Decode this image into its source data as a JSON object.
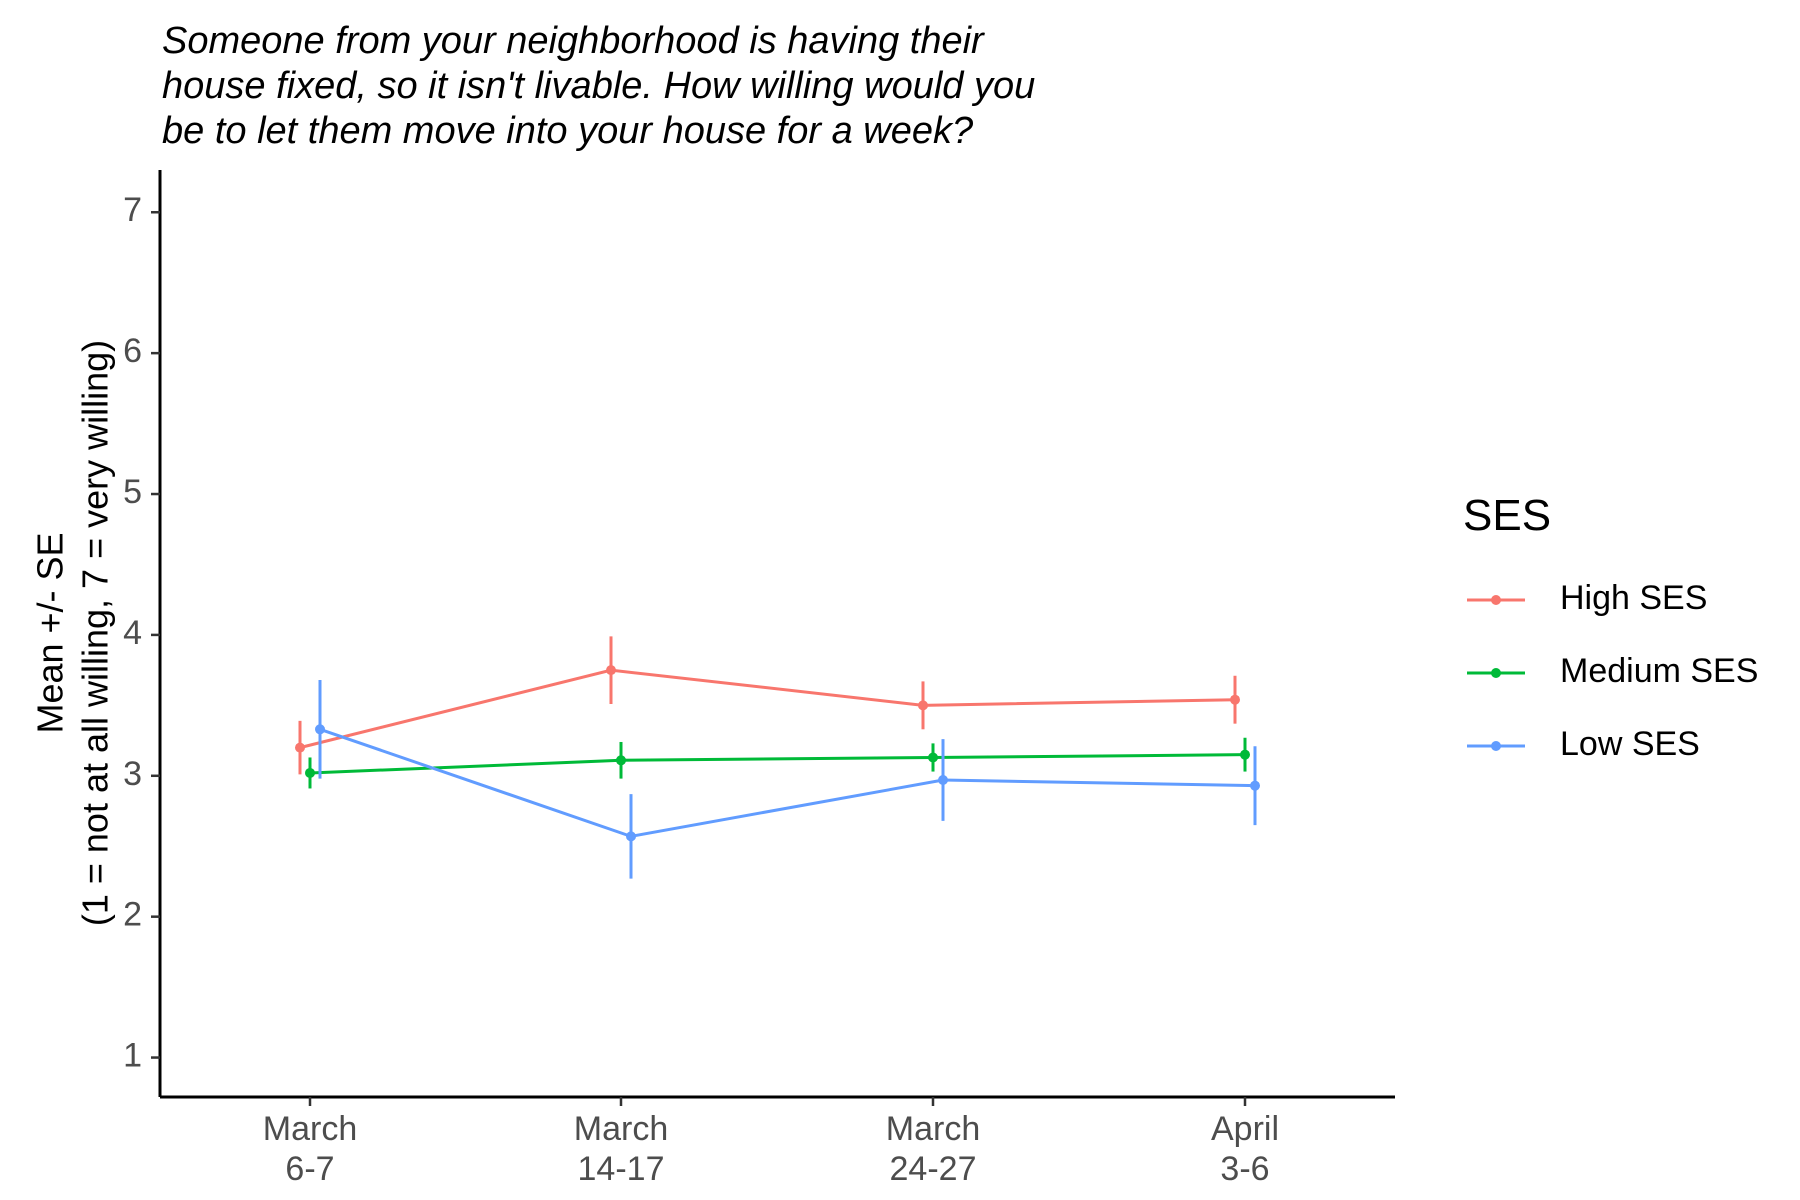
{
  "chart_data": {
    "type": "line",
    "title": [
      "Someone from your neighborhood is having their",
      "house fixed, so it isn't livable. How willing would you",
      "be to let them move into your house for a week?"
    ],
    "ylabel": [
      "Mean +/- SE",
      "(1 = not at all willing, 7 = very willing)"
    ],
    "xlabel": "",
    "categories": [
      [
        "March",
        "6-7"
      ],
      [
        "March",
        "14-17"
      ],
      [
        "March",
        "24-27"
      ],
      [
        "April",
        "3-6"
      ]
    ],
    "ylim": [
      0.72,
      7.3
    ],
    "yticks": [
      1,
      2,
      3,
      4,
      5,
      6,
      7
    ],
    "grid": false,
    "legend": {
      "title": "SES",
      "position": "right"
    },
    "series": [
      {
        "name": "High SES",
        "color": "#F8766D",
        "values": [
          3.2,
          3.75,
          3.5,
          3.54
        ],
        "se": [
          0.19,
          0.24,
          0.17,
          0.17
        ]
      },
      {
        "name": "Medium SES",
        "color": "#00BA38",
        "values": [
          3.02,
          3.11,
          3.13,
          3.15
        ],
        "se": [
          0.11,
          0.13,
          0.1,
          0.12
        ]
      },
      {
        "name": "Low SES",
        "color": "#619CFF",
        "values": [
          3.33,
          2.57,
          2.97,
          2.93
        ],
        "se": [
          0.35,
          0.3,
          0.29,
          0.28
        ]
      }
    ]
  }
}
